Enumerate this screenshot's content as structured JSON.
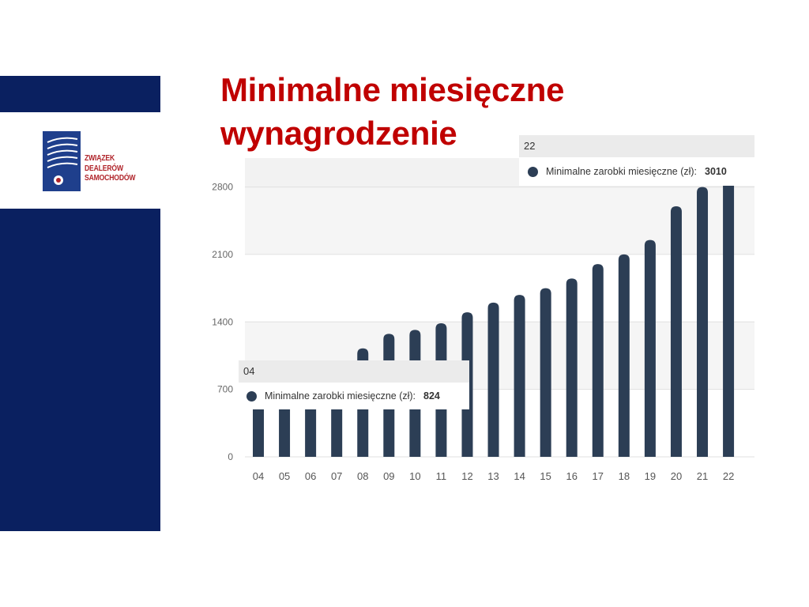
{
  "slide": {
    "title_line1": "Minimalne miesięczne",
    "title_line2": "wynagrodzenie"
  },
  "logo": {
    "line1": "ZWIĄZEK",
    "line2": "DEALERÓW",
    "line3": "SAMOCHODÓW"
  },
  "colors": {
    "sidebar": "#0a2060",
    "title": "#c00000",
    "logo_text": "#b0242a",
    "bar": "#2c3e55"
  },
  "tooltips": [
    {
      "category": "22",
      "series_label": "Minimalne zarobki miesięczne (zł):",
      "value": "3010"
    },
    {
      "category": "04",
      "series_label": "Minimalne zarobki miesięczne (zł):",
      "value": "824"
    }
  ],
  "chart_data": {
    "type": "bar",
    "categories": [
      "04",
      "05",
      "06",
      "07",
      "08",
      "09",
      "10",
      "11",
      "12",
      "13",
      "14",
      "15",
      "16",
      "17",
      "18",
      "19",
      "20",
      "21",
      "22"
    ],
    "series": [
      {
        "name": "Minimalne zarobki miesięczne (zł)",
        "values": [
          824,
          849,
          899,
          936,
          1126,
          1276,
          1317,
          1386,
          1500,
          1600,
          1680,
          1750,
          1850,
          2000,
          2100,
          2250,
          2600,
          2800,
          3010
        ]
      }
    ],
    "yticks": [
      0,
      700,
      1400,
      2100,
      2800
    ],
    "ylim": [
      0,
      3100
    ],
    "grid": true,
    "legend": "none"
  }
}
